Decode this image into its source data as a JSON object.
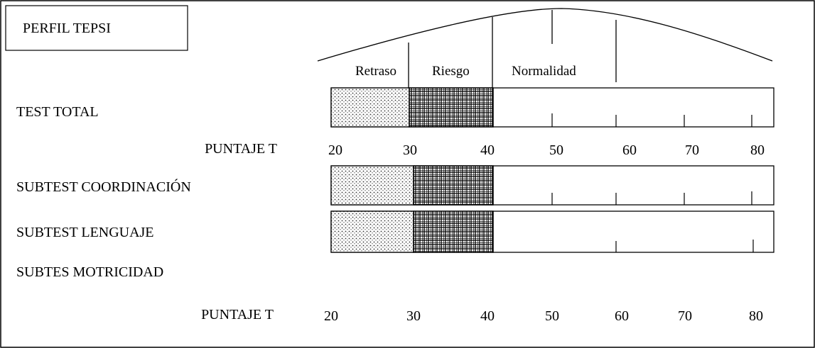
{
  "title": "PERFIL TEPSI",
  "zones": {
    "retraso": "Retraso",
    "riesgo": "Riesgo",
    "normalidad": "Normalidad"
  },
  "rows": [
    {
      "label": "TEST TOTAL",
      "has_bar": true
    },
    {
      "label": "PUNTAJE T",
      "is_scale": true
    },
    {
      "label": "SUBTEST COORDINACIÓN",
      "has_bar": true
    },
    {
      "label": "SUBTEST LENGUAJE",
      "has_bar": true
    },
    {
      "label": "SUBTES MOTRICIDAD",
      "has_bar": false
    },
    {
      "label": "PUNTAJE T",
      "is_scale": true
    }
  ],
  "scale_ticks": [
    "20",
    "30",
    "40",
    "50",
    "60",
    "70",
    "80"
  ],
  "zone_bounds": {
    "retraso": [
      20,
      30
    ],
    "riesgo": [
      30,
      40
    ],
    "normalidad": [
      40,
      82
    ]
  },
  "colors": {
    "line": "#000000",
    "background": "#ffffff"
  }
}
